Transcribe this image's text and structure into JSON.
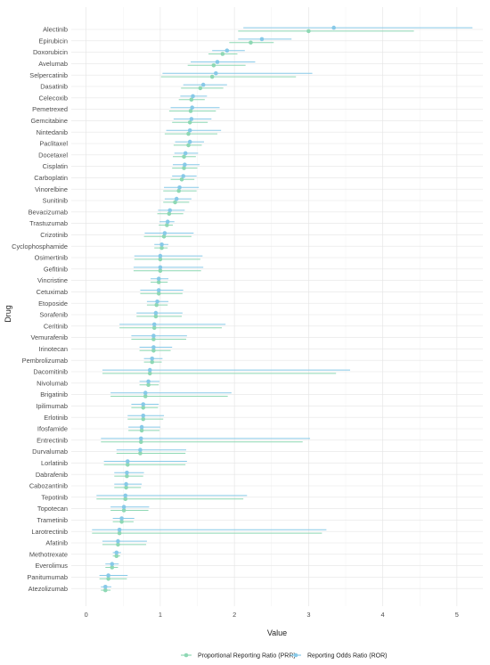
{
  "chart_data": {
    "type": "scatter",
    "xlabel": "Value",
    "ylabel": "Drug",
    "xlim": [
      -0.2,
      5.35
    ],
    "x_ticks": [
      0,
      1,
      2,
      3,
      4,
      5
    ],
    "grid": true,
    "legend_position": "bottom",
    "colors": {
      "PRR": "#8ed8b4",
      "ROR": "#87c9e8",
      "grid_major": "#e4e4e4",
      "grid_minor": "#f2f2f2"
    },
    "categories": [
      "Alectinib",
      "Epirubicin",
      "Doxorubicin",
      "Avelumab",
      "Selpercatinib",
      "Dasatinib",
      "Celecoxib",
      "Pemetrexed",
      "Gemcitabine",
      "Nintedanib",
      "Paclitaxel",
      "Docetaxel",
      "Cisplatin",
      "Carboplatin",
      "Vinorelbine",
      "Sunitinib",
      "Bevacizumab",
      "Trastuzumab",
      "Crizotinib",
      "Cyclophosphamide",
      "Osimertinib",
      "Gefitinib",
      "Vincristine",
      "Cetuximab",
      "Etoposide",
      "Sorafenib",
      "Ceritinib",
      "Vemurafenib",
      "Irinotecan",
      "Pembrolizumab",
      "Dacomitinib",
      "Nivolumab",
      "Brigatinib",
      "Ipilimumab",
      "Erlotinib",
      "Ifosfamide",
      "Entrectinib",
      "Durvalumab",
      "Lorlatinib",
      "Dabrafenib",
      "Cabozantinib",
      "Tepotinib",
      "Topotecan",
      "Trametinib",
      "Larotrectinib",
      "Afatinib",
      "Methotrexate",
      "Everolimus",
      "Panitumumab",
      "Atezolizumab"
    ],
    "series": [
      {
        "name": "Proportional Reporting Ratio (PRR)",
        "values": [
          3.0,
          2.22,
          1.84,
          1.72,
          1.7,
          1.54,
          1.42,
          1.41,
          1.4,
          1.38,
          1.38,
          1.32,
          1.32,
          1.29,
          1.25,
          1.2,
          1.12,
          1.09,
          1.05,
          1.02,
          1.0,
          1.0,
          0.98,
          0.98,
          0.95,
          0.94,
          0.92,
          0.91,
          0.91,
          0.89,
          0.86,
          0.84,
          0.8,
          0.77,
          0.77,
          0.75,
          0.74,
          0.73,
          0.56,
          0.55,
          0.54,
          0.53,
          0.51,
          0.48,
          0.45,
          0.43,
          0.41,
          0.35,
          0.3,
          0.26
        ],
        "lower": [
          2.05,
          1.93,
          1.65,
          1.37,
          1.01,
          1.28,
          1.25,
          1.12,
          1.16,
          1.06,
          1.18,
          1.17,
          1.16,
          1.14,
          1.04,
          1.04,
          0.96,
          0.98,
          0.78,
          0.92,
          0.65,
          0.64,
          0.87,
          0.73,
          0.82,
          0.68,
          0.45,
          0.61,
          0.72,
          0.78,
          0.22,
          0.72,
          0.33,
          0.61,
          0.56,
          0.57,
          0.2,
          0.41,
          0.24,
          0.38,
          0.38,
          0.14,
          0.33,
          0.36,
          0.08,
          0.22,
          0.36,
          0.26,
          0.18,
          0.2
        ],
        "upper": [
          4.42,
          2.53,
          2.04,
          2.15,
          2.83,
          1.85,
          1.6,
          1.75,
          1.64,
          1.77,
          1.56,
          1.48,
          1.5,
          1.46,
          1.49,
          1.39,
          1.31,
          1.17,
          1.42,
          1.1,
          1.54,
          1.55,
          1.1,
          1.3,
          1.1,
          1.29,
          1.83,
          1.35,
          1.14,
          1.02,
          3.37,
          0.98,
          1.91,
          0.97,
          1.04,
          0.99,
          2.92,
          1.34,
          1.34,
          0.77,
          0.74,
          2.12,
          0.84,
          0.64,
          3.18,
          0.81,
          0.46,
          0.43,
          0.55,
          0.33
        ]
      },
      {
        "name": "Reporting Odds Ratio (ROR)",
        "values": [
          3.34,
          2.37,
          1.9,
          1.77,
          1.75,
          1.58,
          1.44,
          1.43,
          1.42,
          1.4,
          1.4,
          1.34,
          1.33,
          1.31,
          1.26,
          1.22,
          1.13,
          1.1,
          1.06,
          1.02,
          1.0,
          1.0,
          0.98,
          0.98,
          0.96,
          0.94,
          0.92,
          0.91,
          0.91,
          0.89,
          0.86,
          0.84,
          0.8,
          0.77,
          0.77,
          0.75,
          0.74,
          0.73,
          0.56,
          0.55,
          0.54,
          0.53,
          0.51,
          0.48,
          0.45,
          0.43,
          0.41,
          0.35,
          0.3,
          0.26
        ],
        "lower": [
          2.12,
          2.05,
          1.7,
          1.41,
          1.03,
          1.31,
          1.27,
          1.14,
          1.18,
          1.08,
          1.2,
          1.19,
          1.17,
          1.16,
          1.05,
          1.06,
          0.97,
          0.99,
          0.79,
          0.92,
          0.65,
          0.64,
          0.87,
          0.73,
          0.82,
          0.68,
          0.45,
          0.61,
          0.72,
          0.78,
          0.22,
          0.72,
          0.33,
          0.61,
          0.56,
          0.57,
          0.2,
          0.41,
          0.24,
          0.38,
          0.38,
          0.14,
          0.33,
          0.36,
          0.08,
          0.22,
          0.36,
          0.26,
          0.18,
          0.2
        ],
        "upper": [
          5.21,
          2.77,
          2.14,
          2.28,
          3.05,
          1.9,
          1.63,
          1.8,
          1.69,
          1.82,
          1.59,
          1.51,
          1.53,
          1.49,
          1.52,
          1.42,
          1.33,
          1.19,
          1.45,
          1.11,
          1.57,
          1.58,
          1.11,
          1.31,
          1.11,
          1.3,
          1.88,
          1.36,
          1.16,
          1.03,
          3.56,
          0.99,
          1.96,
          0.98,
          1.05,
          1.0,
          3.02,
          1.35,
          1.36,
          0.78,
          0.75,
          2.17,
          0.85,
          0.65,
          3.24,
          0.82,
          0.47,
          0.44,
          0.56,
          0.34
        ]
      }
    ]
  }
}
